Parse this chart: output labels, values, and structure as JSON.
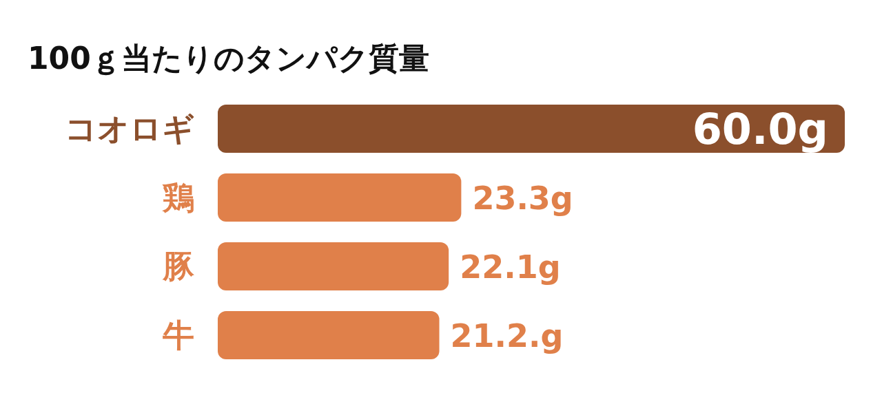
{
  "chart_data": {
    "type": "bar",
    "orientation": "horizontal",
    "title": "100ｇ当たりのタンパク質量",
    "categories": [
      "コオロギ",
      "鶏",
      "豚",
      "牛"
    ],
    "values": [
      60.0,
      23.3,
      22.1,
      21.2
    ],
    "colors": [
      "#8b4f2c",
      "#e0804a",
      "#e0804a",
      "#e0804a"
    ],
    "value_labels": [
      "60.0g",
      "23.3g",
      "22.1g",
      "21.2.g"
    ]
  }
}
